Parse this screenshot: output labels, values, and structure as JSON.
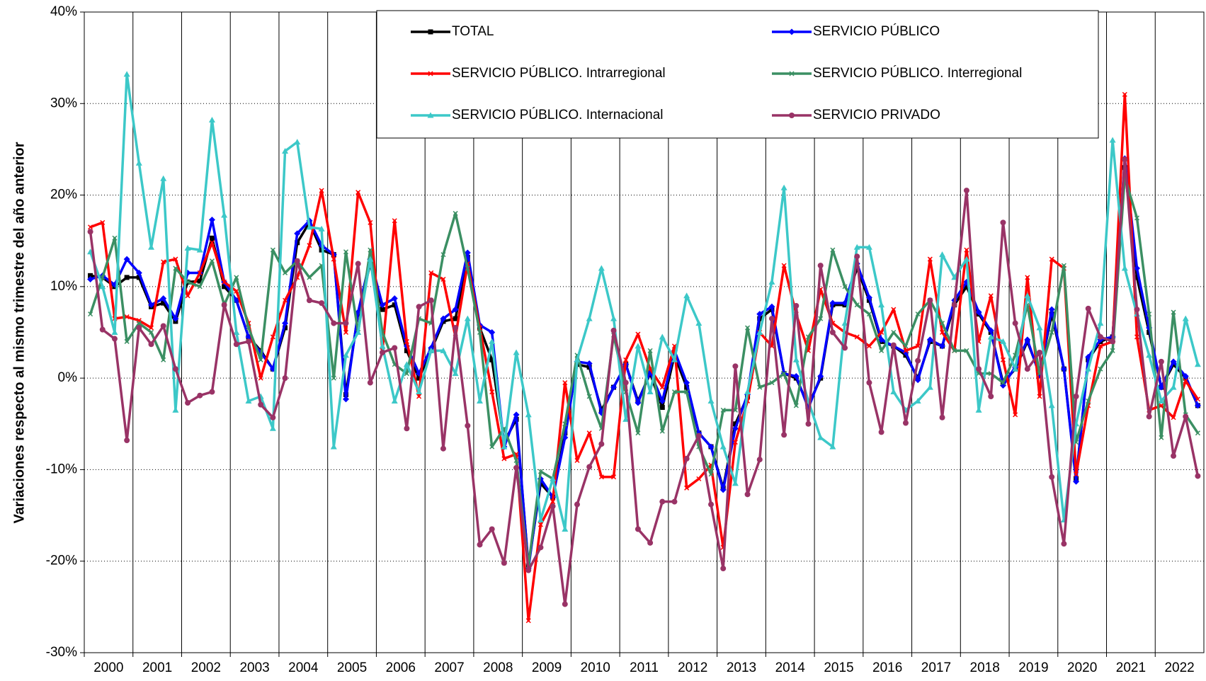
{
  "chart_data": {
    "type": "line",
    "ylabel": "Variaciones respecto al mismo trimestre del año anterior",
    "categories": [
      "2000",
      null,
      null,
      null,
      "2001",
      null,
      null,
      null,
      "2002",
      null,
      null,
      null,
      "2003",
      null,
      null,
      null,
      "2004",
      null,
      null,
      null,
      "2005",
      null,
      null,
      null,
      "2006",
      null,
      null,
      null,
      "2007",
      null,
      null,
      null,
      "2008",
      null,
      null,
      null,
      "2009",
      null,
      null,
      null,
      "2010",
      null,
      null,
      null,
      "2011",
      null,
      null,
      null,
      "2012",
      null,
      null,
      null,
      "2013",
      null,
      null,
      null,
      "2014",
      null,
      null,
      null,
      "2015",
      null,
      null,
      null,
      "2016",
      null,
      null,
      null,
      "2017",
      null,
      null,
      null,
      "2018",
      null,
      null,
      null,
      "2019",
      null,
      null,
      null,
      "2020",
      null,
      null,
      null,
      "2021",
      null,
      null,
      null,
      "2022",
      null,
      null,
      null
    ],
    "ylim": [
      -30,
      40
    ],
    "yticks": [
      {
        "value": -30,
        "label": "-30%"
      },
      {
        "value": -20,
        "label": "-20%"
      },
      {
        "value": -10,
        "label": "-10%"
      },
      {
        "value": 0,
        "label": "0%"
      },
      {
        "value": 10,
        "label": "10%"
      },
      {
        "value": 20,
        "label": "20%"
      },
      {
        "value": 30,
        "label": "30%"
      },
      {
        "value": 40,
        "label": "40%"
      }
    ],
    "grid": true,
    "legend": "top-right",
    "series": [
      {
        "name": "TOTAL",
        "color": "#000000",
        "marker": "square",
        "values": [
          11.2,
          11.0,
          10.0,
          11.0,
          11.0,
          7.8,
          8.2,
          6.2,
          10.5,
          10.6,
          15.3,
          10.0,
          8.5,
          4.5,
          3.0,
          1.0,
          5.5,
          14.8,
          17.0,
          14.0,
          13.5,
          -1.8,
          7.0,
          12.5,
          7.5,
          8.0,
          3.0,
          0.0,
          3.0,
          6.2,
          6.5,
          13.2,
          5.5,
          2.0,
          -7.0,
          -4.5,
          -20.5,
          -11.5,
          -13.0,
          -6.0,
          1.5,
          1.2,
          -3.5,
          -1.0,
          1.5,
          -2.5,
          0.5,
          -3.2,
          2.5,
          -1.0,
          -6.0,
          -7.5,
          -12.0,
          -5.0,
          -2.0,
          6.5,
          7.5,
          0.5,
          0.0,
          -3.0,
          0.0,
          8.0,
          8.0,
          12.0,
          8.5,
          4.0,
          3.5,
          2.5,
          0.0,
          4.0,
          3.5,
          8.0,
          10.0,
          7.0,
          5.0,
          -0.5,
          1.0,
          4.0,
          0.5,
          7.0,
          1.0,
          -11.0,
          2.0,
          4.0,
          4.5,
          23.0,
          11.0,
          5.0,
          -1.0,
          1.5,
          0.0,
          -3.0
        ]
      },
      {
        "name": "SERVICIO PÚBLICO",
        "color": "#0000ff",
        "marker": "diamond",
        "values": [
          10.8,
          11.2,
          10.2,
          13.0,
          11.5,
          8.0,
          8.7,
          6.5,
          11.5,
          11.5,
          17.3,
          10.5,
          8.5,
          4.5,
          2.8,
          1.0,
          6.0,
          15.8,
          17.2,
          14.5,
          13.5,
          -2.3,
          7.2,
          13.0,
          8.0,
          8.7,
          3.5,
          0.5,
          3.3,
          6.5,
          7.5,
          13.7,
          5.8,
          5.0,
          -7.5,
          -4.0,
          -20.8,
          -11.0,
          -13.0,
          -6.5,
          1.8,
          1.6,
          -3.8,
          -1.0,
          1.5,
          -2.7,
          0.7,
          -2.5,
          3.0,
          -0.5,
          -6.0,
          -7.5,
          -12.2,
          -5.5,
          -1.8,
          7.0,
          7.8,
          0.5,
          0.2,
          -3.3,
          0.2,
          8.2,
          8.2,
          12.5,
          8.8,
          4.2,
          3.5,
          2.8,
          -0.2,
          4.2,
          3.5,
          8.5,
          10.5,
          7.2,
          5.2,
          -0.8,
          1.2,
          4.2,
          0.3,
          7.5,
          1.0,
          -11.3,
          2.3,
          4.2,
          4.5,
          24.0,
          12.0,
          5.5,
          -1.0,
          1.8,
          0.2,
          -3.0
        ]
      },
      {
        "name": "SERVICIO PÚBLICO. Intrarregional",
        "color": "#ff0000",
        "marker": "cross",
        "values": [
          16.5,
          17.0,
          6.5,
          6.7,
          6.3,
          5.5,
          12.7,
          13.0,
          9.0,
          11.5,
          14.8,
          10.5,
          9.5,
          6.0,
          0.0,
          4.5,
          8.5,
          11.0,
          14.5,
          20.5,
          13.0,
          5.0,
          20.3,
          17.0,
          3.0,
          17.2,
          4.0,
          -2.0,
          11.5,
          10.8,
          4.5,
          12.5,
          5.5,
          -1.5,
          -8.8,
          -8.3,
          -26.5,
          -16.0,
          -13.5,
          -0.5,
          -9.0,
          -6.0,
          -10.8,
          -10.8,
          2.0,
          4.8,
          1.0,
          -1.0,
          3.5,
          -12.0,
          -11.0,
          -9.5,
          -18.5,
          -7.0,
          -2.5,
          5.0,
          3.5,
          12.3,
          7.0,
          3.0,
          9.7,
          6.0,
          5.0,
          4.5,
          3.5,
          5.0,
          7.5,
          3.0,
          3.5,
          13.0,
          5.0,
          3.0,
          14.0,
          4.0,
          9.0,
          2.0,
          -4.0,
          11.0,
          -2.0,
          13.0,
          12.0,
          -10.5,
          -3.0,
          3.5,
          4.0,
          31.0,
          4.5,
          -3.5,
          -3.0,
          -4.3,
          -0.3,
          -2.3
        ]
      },
      {
        "name": "SERVICIO PÚBLICO. Interregional",
        "color": "#3b8f63",
        "marker": "cross",
        "values": [
          7.0,
          11.0,
          15.3,
          4.0,
          6.0,
          5.0,
          2.0,
          12.0,
          10.5,
          10.0,
          12.8,
          8.0,
          11.0,
          5.5,
          2.0,
          14.0,
          11.5,
          12.8,
          11.0,
          12.3,
          0.0,
          13.8,
          5.0,
          14.0,
          5.0,
          1.5,
          0.5,
          6.5,
          6.0,
          13.5,
          18.0,
          12.0,
          5.0,
          -7.5,
          -5.5,
          -9.0,
          -20.5,
          -10.2,
          -11.0,
          -5.0,
          2.5,
          -2.0,
          -5.5,
          4.7,
          -1.5,
          -6.0,
          3.0,
          -5.8,
          -1.5,
          -1.5,
          -7.5,
          -10.5,
          -3.5,
          -3.5,
          5.5,
          -1.0,
          -0.5,
          0.5,
          -3.0,
          4.5,
          6.5,
          14.0,
          10.0,
          8.0,
          7.0,
          3.0,
          5.0,
          3.5,
          7.0,
          8.5,
          6.0,
          3.0,
          3.0,
          0.5,
          0.5,
          -0.5,
          2.5,
          8.0,
          0.5,
          5.0,
          12.3,
          -7.0,
          -2.5,
          1.0,
          3.0,
          22.0,
          17.5,
          7.0,
          -6.5,
          7.2,
          -4.0,
          -6.0
        ]
      },
      {
        "name": "SERVICIO PÚBLICO. Internacional",
        "color": "#3cc8c8",
        "marker": "triangle",
        "values": [
          13.8,
          10.0,
          5.0,
          33.2,
          23.5,
          14.3,
          21.8,
          -3.5,
          14.2,
          14.0,
          28.2,
          17.8,
          5.0,
          -2.5,
          -2.0,
          -5.5,
          24.8,
          25.8,
          16.5,
          16.3,
          -7.5,
          2.5,
          5.0,
          13.0,
          3.5,
          -2.5,
          1.5,
          -1.5,
          3.0,
          3.0,
          0.5,
          6.5,
          -2.5,
          4.0,
          -7.5,
          2.8,
          -4.0,
          -15.5,
          -11.0,
          -16.5,
          2.0,
          6.5,
          12.0,
          6.5,
          -4.5,
          3.5,
          -1.5,
          4.5,
          2.0,
          9.0,
          6.0,
          -2.5,
          -7.5,
          -11.5,
          -1.5,
          5.0,
          10.5,
          20.8,
          2.0,
          -2.5,
          -6.5,
          -7.5,
          6.0,
          14.3,
          14.3,
          8.0,
          -1.5,
          -3.5,
          -2.5,
          -1.0,
          13.5,
          11.0,
          13.0,
          -3.5,
          4.5,
          4.0,
          1.0,
          9.0,
          5.5,
          -3.0,
          -15.5,
          -5.0,
          1.0,
          6.0,
          26.0,
          12.0,
          7.0,
          2.5,
          -2.5,
          -1.0,
          6.5,
          1.5
        ]
      },
      {
        "name": "SERVICIO PRIVADO",
        "color": "#993366",
        "marker": "circle",
        "values": [
          16.0,
          5.3,
          4.3,
          -6.8,
          5.5,
          3.7,
          5.7,
          1.0,
          -2.7,
          -1.9,
          -1.5,
          8.0,
          3.7,
          4.0,
          -2.9,
          -4.3,
          0.0,
          12.8,
          8.5,
          8.2,
          6.0,
          6.0,
          12.5,
          -0.5,
          2.8,
          3.3,
          -5.5,
          7.8,
          8.5,
          -7.7,
          5.5,
          -5.2,
          -18.2,
          -16.5,
          -20.2,
          -9.8,
          -21.0,
          -18.5,
          -14.0,
          -24.7,
          -13.8,
          -9.7,
          -7.2,
          5.2,
          -0.5,
          -16.5,
          -18.0,
          -13.5,
          -13.5,
          -8.8,
          -6.3,
          -13.8,
          -20.8,
          1.3,
          -12.7,
          -8.9,
          6.5,
          -6.2,
          7.9,
          -5.0,
          12.3,
          5.0,
          3.3,
          13.3,
          -0.5,
          -5.9,
          3.6,
          -4.9,
          1.9,
          8.5,
          -4.3,
          8.0,
          20.5,
          1.0,
          -2.0,
          17.0,
          6.0,
          1.0,
          2.8,
          -10.8,
          -18.1,
          -2.0,
          7.6,
          4.5,
          4.0,
          23.9,
          7.5,
          -4.2,
          1.8,
          -8.5,
          -4.2,
          -10.7
        ]
      }
    ]
  }
}
